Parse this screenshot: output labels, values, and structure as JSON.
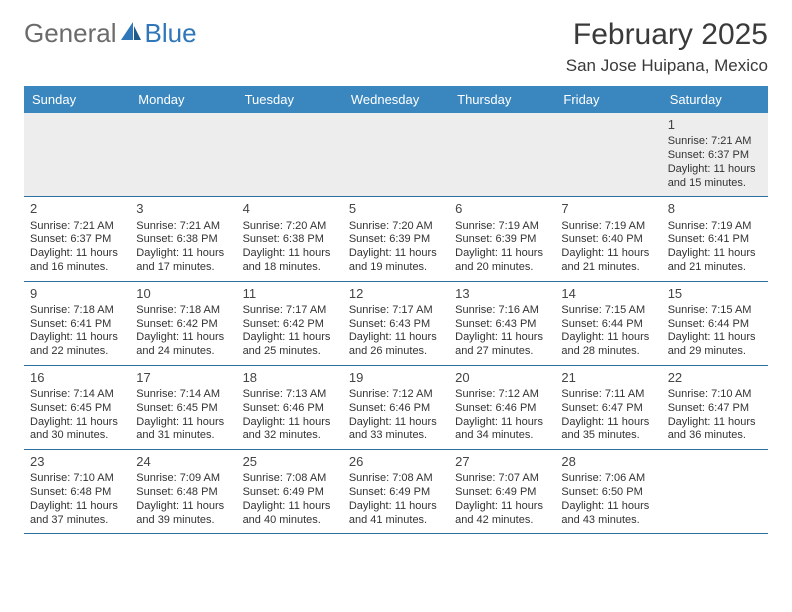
{
  "logo": {
    "text1": "General",
    "text2": "Blue"
  },
  "title": "February 2025",
  "location": "San Jose Huipana, Mexico",
  "colors": {
    "header_bg": "#3a87bf",
    "header_text": "#ffffff",
    "row_border": "#2f6fa0",
    "first_row_bg": "#ededed",
    "text": "#333333",
    "title_color": "#3a3a3a",
    "logo_gray": "#6b6b6b",
    "logo_blue": "#2f77b8"
  },
  "dayNames": [
    "Sunday",
    "Monday",
    "Tuesday",
    "Wednesday",
    "Thursday",
    "Friday",
    "Saturday"
  ],
  "weeks": [
    [
      null,
      null,
      null,
      null,
      null,
      null,
      {
        "n": "1",
        "sr": "Sunrise: 7:21 AM",
        "ss": "Sunset: 6:37 PM",
        "dl": "Daylight: 11 hours and 15 minutes."
      }
    ],
    [
      {
        "n": "2",
        "sr": "Sunrise: 7:21 AM",
        "ss": "Sunset: 6:37 PM",
        "dl": "Daylight: 11 hours and 16 minutes."
      },
      {
        "n": "3",
        "sr": "Sunrise: 7:21 AM",
        "ss": "Sunset: 6:38 PM",
        "dl": "Daylight: 11 hours and 17 minutes."
      },
      {
        "n": "4",
        "sr": "Sunrise: 7:20 AM",
        "ss": "Sunset: 6:38 PM",
        "dl": "Daylight: 11 hours and 18 minutes."
      },
      {
        "n": "5",
        "sr": "Sunrise: 7:20 AM",
        "ss": "Sunset: 6:39 PM",
        "dl": "Daylight: 11 hours and 19 minutes."
      },
      {
        "n": "6",
        "sr": "Sunrise: 7:19 AM",
        "ss": "Sunset: 6:39 PM",
        "dl": "Daylight: 11 hours and 20 minutes."
      },
      {
        "n": "7",
        "sr": "Sunrise: 7:19 AM",
        "ss": "Sunset: 6:40 PM",
        "dl": "Daylight: 11 hours and 21 minutes."
      },
      {
        "n": "8",
        "sr": "Sunrise: 7:19 AM",
        "ss": "Sunset: 6:41 PM",
        "dl": "Daylight: 11 hours and 21 minutes."
      }
    ],
    [
      {
        "n": "9",
        "sr": "Sunrise: 7:18 AM",
        "ss": "Sunset: 6:41 PM",
        "dl": "Daylight: 11 hours and 22 minutes."
      },
      {
        "n": "10",
        "sr": "Sunrise: 7:18 AM",
        "ss": "Sunset: 6:42 PM",
        "dl": "Daylight: 11 hours and 24 minutes."
      },
      {
        "n": "11",
        "sr": "Sunrise: 7:17 AM",
        "ss": "Sunset: 6:42 PM",
        "dl": "Daylight: 11 hours and 25 minutes."
      },
      {
        "n": "12",
        "sr": "Sunrise: 7:17 AM",
        "ss": "Sunset: 6:43 PM",
        "dl": "Daylight: 11 hours and 26 minutes."
      },
      {
        "n": "13",
        "sr": "Sunrise: 7:16 AM",
        "ss": "Sunset: 6:43 PM",
        "dl": "Daylight: 11 hours and 27 minutes."
      },
      {
        "n": "14",
        "sr": "Sunrise: 7:15 AM",
        "ss": "Sunset: 6:44 PM",
        "dl": "Daylight: 11 hours and 28 minutes."
      },
      {
        "n": "15",
        "sr": "Sunrise: 7:15 AM",
        "ss": "Sunset: 6:44 PM",
        "dl": "Daylight: 11 hours and 29 minutes."
      }
    ],
    [
      {
        "n": "16",
        "sr": "Sunrise: 7:14 AM",
        "ss": "Sunset: 6:45 PM",
        "dl": "Daylight: 11 hours and 30 minutes."
      },
      {
        "n": "17",
        "sr": "Sunrise: 7:14 AM",
        "ss": "Sunset: 6:45 PM",
        "dl": "Daylight: 11 hours and 31 minutes."
      },
      {
        "n": "18",
        "sr": "Sunrise: 7:13 AM",
        "ss": "Sunset: 6:46 PM",
        "dl": "Daylight: 11 hours and 32 minutes."
      },
      {
        "n": "19",
        "sr": "Sunrise: 7:12 AM",
        "ss": "Sunset: 6:46 PM",
        "dl": "Daylight: 11 hours and 33 minutes."
      },
      {
        "n": "20",
        "sr": "Sunrise: 7:12 AM",
        "ss": "Sunset: 6:46 PM",
        "dl": "Daylight: 11 hours and 34 minutes."
      },
      {
        "n": "21",
        "sr": "Sunrise: 7:11 AM",
        "ss": "Sunset: 6:47 PM",
        "dl": "Daylight: 11 hours and 35 minutes."
      },
      {
        "n": "22",
        "sr": "Sunrise: 7:10 AM",
        "ss": "Sunset: 6:47 PM",
        "dl": "Daylight: 11 hours and 36 minutes."
      }
    ],
    [
      {
        "n": "23",
        "sr": "Sunrise: 7:10 AM",
        "ss": "Sunset: 6:48 PM",
        "dl": "Daylight: 11 hours and 37 minutes."
      },
      {
        "n": "24",
        "sr": "Sunrise: 7:09 AM",
        "ss": "Sunset: 6:48 PM",
        "dl": "Daylight: 11 hours and 39 minutes."
      },
      {
        "n": "25",
        "sr": "Sunrise: 7:08 AM",
        "ss": "Sunset: 6:49 PM",
        "dl": "Daylight: 11 hours and 40 minutes."
      },
      {
        "n": "26",
        "sr": "Sunrise: 7:08 AM",
        "ss": "Sunset: 6:49 PM",
        "dl": "Daylight: 11 hours and 41 minutes."
      },
      {
        "n": "27",
        "sr": "Sunrise: 7:07 AM",
        "ss": "Sunset: 6:49 PM",
        "dl": "Daylight: 11 hours and 42 minutes."
      },
      {
        "n": "28",
        "sr": "Sunrise: 7:06 AM",
        "ss": "Sunset: 6:50 PM",
        "dl": "Daylight: 11 hours and 43 minutes."
      },
      null
    ]
  ]
}
